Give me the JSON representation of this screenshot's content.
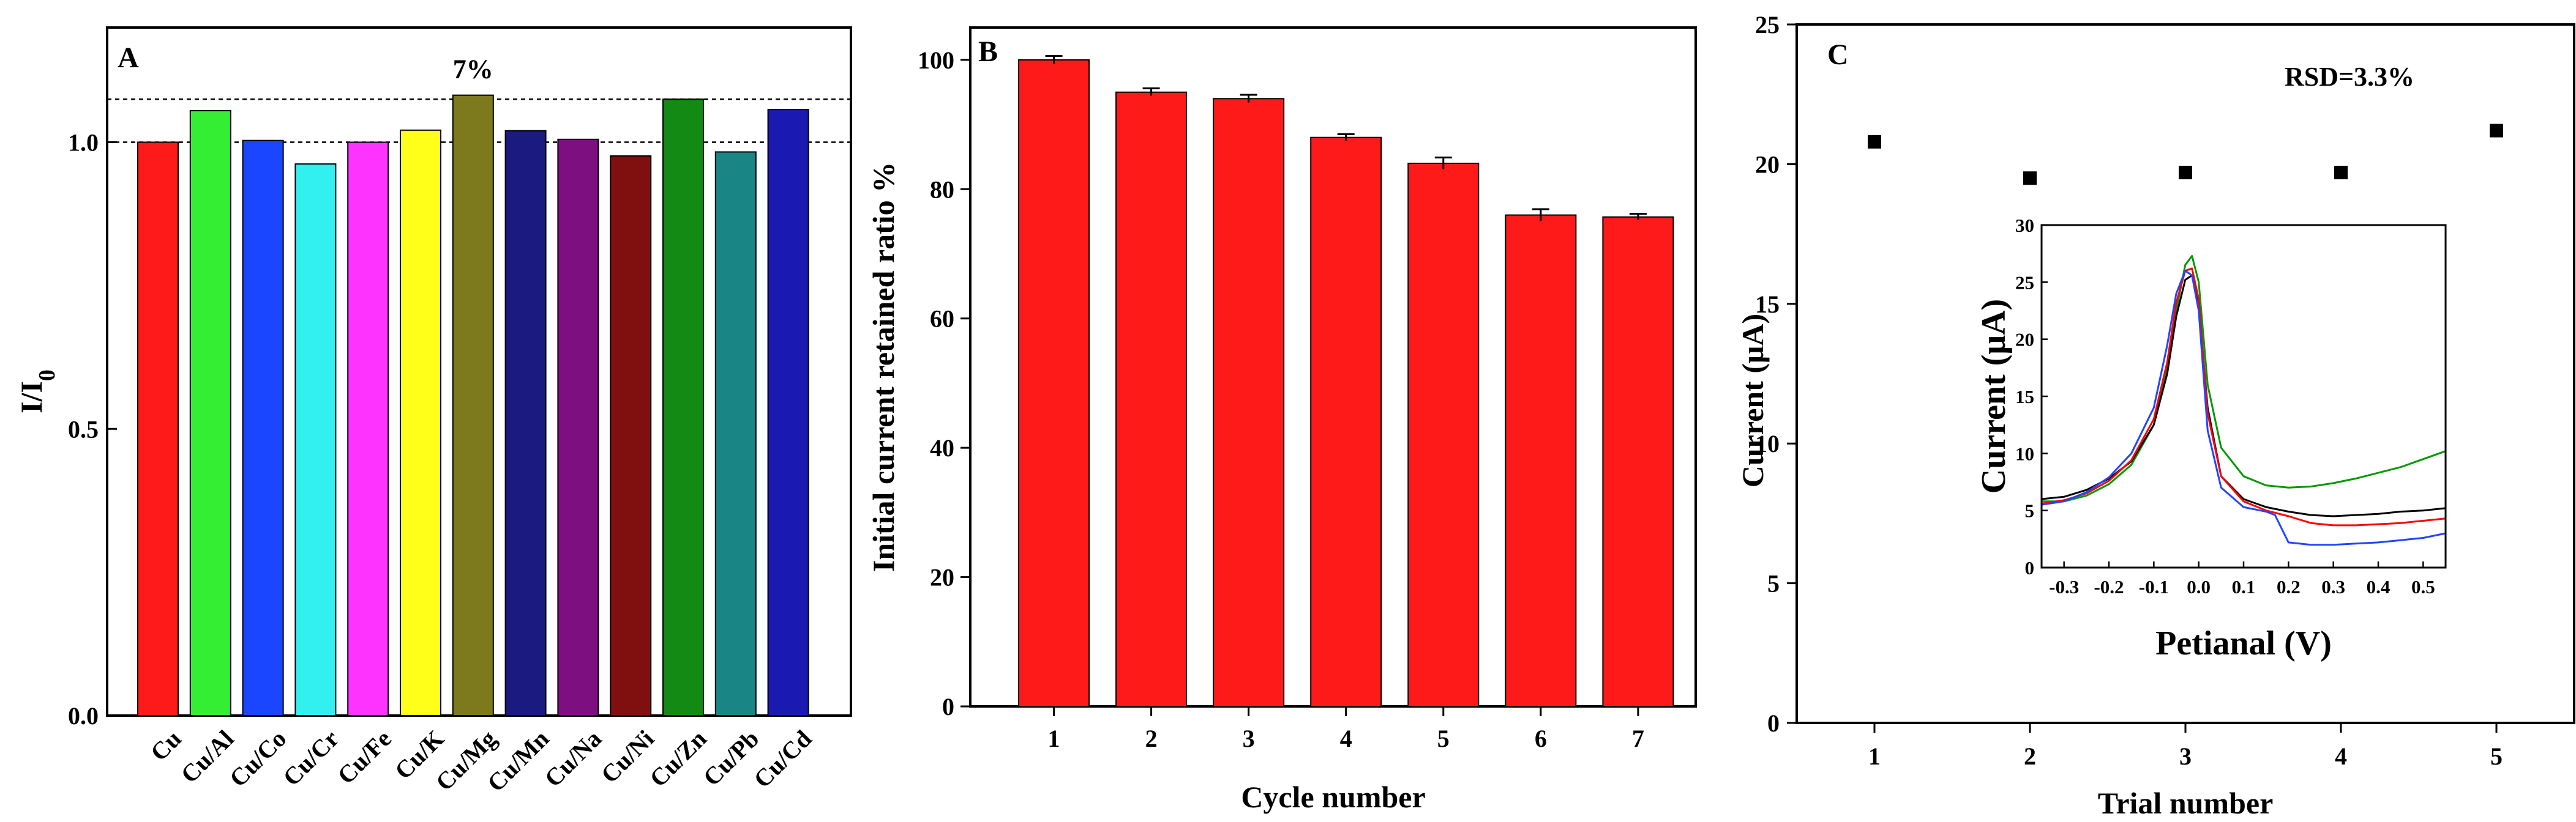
{
  "chart_data": [
    {
      "panel": "A",
      "type": "bar",
      "ylabel": "I/I0",
      "ylim": [
        0.0,
        1.2
      ],
      "yticks": [
        "0.0",
        "0.5",
        "1.0"
      ],
      "categories": [
        "Cu",
        "Cu/Al",
        "Cu/Co",
        "Cu/Cr",
        "Cu/Fe",
        "Cu/K",
        "Cu/Mg",
        "Cu/Mn",
        "Cu/Na",
        "Cu/Ni",
        "Cu/Zn",
        "Cu/Pb",
        "Cu/Cd"
      ],
      "values": [
        1.0,
        1.055,
        1.003,
        0.962,
        1.0,
        1.021,
        1.082,
        1.02,
        1.005,
        0.976,
        1.075,
        0.983,
        1.057
      ],
      "colors": [
        "#ff1a1a",
        "#33ee33",
        "#1a46ff",
        "#33f0f0",
        "#ff33ff",
        "#ffff1a",
        "#7d7a1e",
        "#1a1a80",
        "#7d0f80",
        "#800f0f",
        "#138a13",
        "#198585",
        "#1a1ab3"
      ],
      "reference_lines": [
        1.0,
        1.075
      ],
      "annotation": "7%"
    },
    {
      "panel": "B",
      "type": "bar",
      "xlabel": "Cycle number",
      "ylabel": "Initial current retained ratio %",
      "ylim": [
        0,
        105
      ],
      "yticks": [
        "0",
        "20",
        "40",
        "60",
        "80",
        "100"
      ],
      "categories": [
        "1",
        "2",
        "3",
        "4",
        "5",
        "6",
        "7"
      ],
      "values": [
        100.0,
        95.0,
        94.0,
        88.0,
        84.0,
        76.0,
        75.7
      ],
      "errors": [
        0.6,
        0.6,
        0.6,
        0.5,
        0.9,
        0.9,
        0.5
      ],
      "color": "#ff1a1a"
    },
    {
      "panel": "C",
      "type": "scatter",
      "xlabel": "Trial number",
      "ylabel": "Current (μA)",
      "xlim": [
        0.5,
        5.5
      ],
      "ylim": [
        0,
        25
      ],
      "xticks": [
        "1",
        "2",
        "3",
        "4",
        "5"
      ],
      "yticks": [
        "0",
        "5",
        "10",
        "15",
        "20",
        "25"
      ],
      "x": [
        1,
        2,
        3,
        4,
        5
      ],
      "y": [
        20.8,
        19.5,
        19.7,
        19.7,
        21.2
      ],
      "annotation": "RSD=3.3%",
      "inset": {
        "type": "line",
        "xlabel": "Petianal (V)",
        "ylabel": "Current (μA)",
        "xlim": [
          -0.35,
          0.55
        ],
        "ylim": [
          0,
          30
        ],
        "xticks": [
          "-0.3",
          "-0.2",
          "-0.1",
          "0.0",
          "0.1",
          "0.2",
          "0.3",
          "0.4",
          "0.5"
        ],
        "yticks": [
          "0",
          "5",
          "10",
          "15",
          "20",
          "25",
          "30"
        ],
        "series": [
          {
            "color": "#009900",
            "x": [
              -0.35,
              -0.3,
              -0.25,
              -0.2,
              -0.15,
              -0.1,
              -0.07,
              -0.05,
              -0.03,
              -0.015,
              0.0,
              0.02,
              0.05,
              0.1,
              0.15,
              0.2,
              0.25,
              0.3,
              0.35,
              0.4,
              0.45,
              0.5,
              0.55
            ],
            "y": [
              5.8,
              5.8,
              6.3,
              7.3,
              9.0,
              12.5,
              17.5,
              22.5,
              26.5,
              27.3,
              25.0,
              16.0,
              10.5,
              8.0,
              7.2,
              7.0,
              7.1,
              7.4,
              7.8,
              8.3,
              8.8,
              9.5,
              10.2
            ]
          },
          {
            "color": "#000000",
            "x": [
              -0.35,
              -0.3,
              -0.25,
              -0.2,
              -0.15,
              -0.1,
              -0.07,
              -0.05,
              -0.03,
              -0.015,
              0.0,
              0.02,
              0.05,
              0.1,
              0.15,
              0.2,
              0.25,
              0.3,
              0.35,
              0.4,
              0.45,
              0.5,
              0.55
            ],
            "y": [
              6.0,
              6.2,
              6.8,
              7.8,
              9.3,
              12.5,
              17.0,
              22.0,
              25.2,
              25.6,
              23.0,
              14.0,
              8.0,
              6.0,
              5.3,
              4.9,
              4.6,
              4.5,
              4.6,
              4.7,
              4.9,
              5.0,
              5.2
            ]
          },
          {
            "color": "#ff0000",
            "x": [
              -0.35,
              -0.3,
              -0.25,
              -0.2,
              -0.15,
              -0.1,
              -0.07,
              -0.05,
              -0.03,
              -0.015,
              0.0,
              0.02,
              0.05,
              0.1,
              0.15,
              0.2,
              0.25,
              0.3,
              0.35,
              0.4,
              0.45,
              0.5,
              0.55
            ],
            "y": [
              5.6,
              5.9,
              6.5,
              7.6,
              9.4,
              13.0,
              18.0,
              23.2,
              26.0,
              26.2,
              23.5,
              13.5,
              8.0,
              5.8,
              5.0,
              4.5,
              3.9,
              3.7,
              3.7,
              3.8,
              3.9,
              4.1,
              4.3
            ]
          },
          {
            "color": "#2244ff",
            "x": [
              -0.35,
              -0.3,
              -0.25,
              -0.2,
              -0.15,
              -0.1,
              -0.07,
              -0.05,
              -0.03,
              -0.015,
              0.0,
              0.02,
              0.05,
              0.1,
              0.15,
              0.17,
              0.2,
              0.25,
              0.3,
              0.35,
              0.4,
              0.45,
              0.5,
              0.55
            ],
            "y": [
              5.5,
              5.8,
              6.6,
              7.9,
              10.0,
              14.0,
              19.5,
              24.0,
              26.0,
              25.6,
              22.5,
              12.0,
              7.0,
              5.3,
              4.9,
              4.6,
              2.2,
              2.0,
              2.0,
              2.1,
              2.2,
              2.4,
              2.6,
              3.0
            ]
          }
        ]
      }
    }
  ]
}
